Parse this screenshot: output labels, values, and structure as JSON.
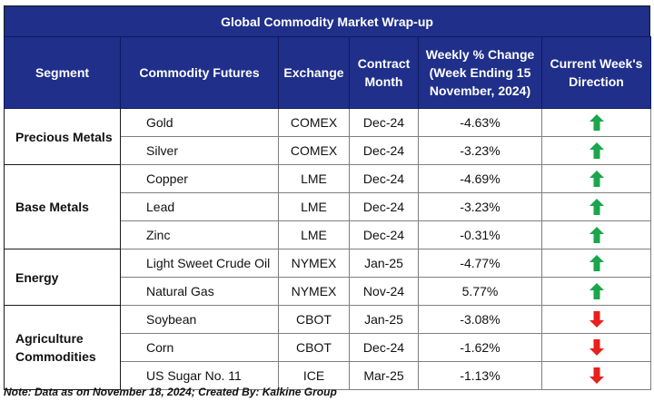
{
  "title": "Global Commodity Market Wrap-up",
  "headers": {
    "segment": "Segment",
    "commodity": "Commodity Futures",
    "exchange": "Exchange",
    "contract": "Contract Month",
    "weekly": "Weekly % Change (Week Ending  15 November, 2024)",
    "direction": "Current Week's Direction"
  },
  "groups": [
    {
      "segment": "Precious Metals",
      "rows": [
        {
          "commodity": "Gold",
          "exchange": "COMEX",
          "contract": "Dec-24",
          "change": "-4.63%",
          "direction": "up"
        },
        {
          "commodity": "Silver",
          "exchange": "COMEX",
          "contract": "Dec-24",
          "change": "-3.23%",
          "direction": "up"
        }
      ]
    },
    {
      "segment": "Base Metals",
      "rows": [
        {
          "commodity": "Copper",
          "exchange": "LME",
          "contract": "Dec-24",
          "change": "-4.69%",
          "direction": "up"
        },
        {
          "commodity": "Lead",
          "exchange": "LME",
          "contract": "Dec-24",
          "change": "-3.23%",
          "direction": "up"
        },
        {
          "commodity": "Zinc",
          "exchange": "LME",
          "contract": "Dec-24",
          "change": "-0.31%",
          "direction": "up"
        }
      ]
    },
    {
      "segment": "Energy",
      "rows": [
        {
          "commodity": "Light Sweet Crude Oil",
          "exchange": "NYMEX",
          "contract": "Jan-25",
          "change": "-4.77%",
          "direction": "up"
        },
        {
          "commodity": "Natural Gas",
          "exchange": "NYMEX",
          "contract": "Nov-24",
          "change": "5.77%",
          "direction": "up"
        }
      ]
    },
    {
      "segment": "Agriculture Commodities",
      "rows": [
        {
          "commodity": "Soybean",
          "exchange": "CBOT",
          "contract": "Jan-25",
          "change": "-3.08%",
          "direction": "down"
        },
        {
          "commodity": "Corn",
          "exchange": "CBOT",
          "contract": "Dec-24",
          "change": "-1.62%",
          "direction": "down"
        },
        {
          "commodity": "US Sugar No. 11",
          "exchange": "ICE",
          "contract": "Mar-25",
          "change": "-1.13%",
          "direction": "down"
        }
      ]
    }
  ],
  "colors": {
    "header_bg": "#1f2f8a",
    "up_arrow": "#1aa64b",
    "down_arrow": "#e8201c"
  },
  "icons": {
    "up": "green-up-arrow-icon",
    "down": "red-down-arrow-icon"
  },
  "note": "Note: Data as on November 18, 2024; Created By: Kalkine Group"
}
